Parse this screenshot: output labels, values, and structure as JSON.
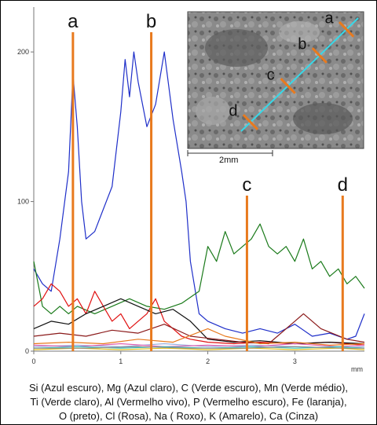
{
  "chart_data": {
    "type": "line",
    "x_unit": "mm",
    "xlim": [
      0,
      3.8
    ],
    "ylim": [
      0,
      230
    ],
    "x_ticks": [
      "0",
      "1",
      "2",
      "3"
    ],
    "y_ticks": [
      "0",
      "100",
      "200"
    ],
    "markers": [
      {
        "label": "a",
        "x": 0.45
      },
      {
        "label": "b",
        "x": 1.35
      },
      {
        "label": "c",
        "x": 2.45
      },
      {
        "label": "d",
        "x": 3.55
      }
    ],
    "marker_color": "#e87a1e",
    "series": [
      {
        "color": "#1f2fc9",
        "points": [
          [
            0.0,
            55
          ],
          [
            0.1,
            45
          ],
          [
            0.2,
            40
          ],
          [
            0.3,
            75
          ],
          [
            0.4,
            120
          ],
          [
            0.45,
            185
          ],
          [
            0.5,
            150
          ],
          [
            0.55,
            100
          ],
          [
            0.6,
            75
          ],
          [
            0.7,
            80
          ],
          [
            0.8,
            95
          ],
          [
            0.9,
            110
          ],
          [
            1.0,
            160
          ],
          [
            1.05,
            195
          ],
          [
            1.1,
            170
          ],
          [
            1.15,
            200
          ],
          [
            1.2,
            180
          ],
          [
            1.3,
            150
          ],
          [
            1.4,
            165
          ],
          [
            1.5,
            200
          ],
          [
            1.6,
            155
          ],
          [
            1.7,
            120
          ],
          [
            1.75,
            100
          ],
          [
            1.8,
            60
          ],
          [
            1.9,
            25
          ],
          [
            2.0,
            20
          ],
          [
            2.2,
            15
          ],
          [
            2.4,
            12
          ],
          [
            2.6,
            15
          ],
          [
            2.8,
            12
          ],
          [
            3.0,
            18
          ],
          [
            3.2,
            10
          ],
          [
            3.4,
            12
          ],
          [
            3.6,
            8
          ],
          [
            3.7,
            10
          ],
          [
            3.8,
            25
          ]
        ]
      },
      {
        "color": "#1a7a1a",
        "points": [
          [
            0.0,
            60
          ],
          [
            0.1,
            30
          ],
          [
            0.2,
            25
          ],
          [
            0.3,
            30
          ],
          [
            0.4,
            25
          ],
          [
            0.5,
            30
          ],
          [
            0.7,
            25
          ],
          [
            0.9,
            30
          ],
          [
            1.1,
            35
          ],
          [
            1.3,
            30
          ],
          [
            1.5,
            28
          ],
          [
            1.7,
            32
          ],
          [
            1.9,
            40
          ],
          [
            2.0,
            70
          ],
          [
            2.1,
            60
          ],
          [
            2.2,
            80
          ],
          [
            2.3,
            65
          ],
          [
            2.4,
            70
          ],
          [
            2.5,
            75
          ],
          [
            2.6,
            85
          ],
          [
            2.7,
            70
          ],
          [
            2.8,
            65
          ],
          [
            2.9,
            70
          ],
          [
            3.0,
            60
          ],
          [
            3.1,
            75
          ],
          [
            3.2,
            55
          ],
          [
            3.3,
            60
          ],
          [
            3.4,
            50
          ],
          [
            3.5,
            55
          ],
          [
            3.6,
            45
          ],
          [
            3.7,
            50
          ],
          [
            3.8,
            42
          ]
        ]
      },
      {
        "color": "#e01010",
        "points": [
          [
            0.0,
            30
          ],
          [
            0.1,
            35
          ],
          [
            0.2,
            45
          ],
          [
            0.3,
            40
          ],
          [
            0.4,
            30
          ],
          [
            0.5,
            35
          ],
          [
            0.6,
            25
          ],
          [
            0.7,
            40
          ],
          [
            0.8,
            30
          ],
          [
            0.9,
            20
          ],
          [
            1.0,
            25
          ],
          [
            1.1,
            15
          ],
          [
            1.2,
            20
          ],
          [
            1.3,
            25
          ],
          [
            1.4,
            35
          ],
          [
            1.5,
            20
          ],
          [
            1.6,
            15
          ],
          [
            1.7,
            10
          ],
          [
            1.8,
            8
          ],
          [
            2.0,
            6
          ],
          [
            2.3,
            5
          ],
          [
            2.6,
            6
          ],
          [
            3.0,
            5
          ],
          [
            3.4,
            6
          ],
          [
            3.8,
            4
          ]
        ]
      },
      {
        "color": "#111111",
        "points": [
          [
            0.0,
            15
          ],
          [
            0.2,
            20
          ],
          [
            0.4,
            18
          ],
          [
            0.6,
            25
          ],
          [
            0.8,
            30
          ],
          [
            1.0,
            35
          ],
          [
            1.2,
            30
          ],
          [
            1.4,
            25
          ],
          [
            1.6,
            28
          ],
          [
            1.8,
            20
          ],
          [
            2.0,
            8
          ],
          [
            2.3,
            6
          ],
          [
            2.6,
            7
          ],
          [
            3.0,
            5
          ],
          [
            3.4,
            6
          ],
          [
            3.8,
            5
          ]
        ]
      },
      {
        "color": "#8b1a1a",
        "points": [
          [
            0.0,
            10
          ],
          [
            0.3,
            12
          ],
          [
            0.6,
            10
          ],
          [
            0.9,
            14
          ],
          [
            1.2,
            12
          ],
          [
            1.5,
            18
          ],
          [
            1.8,
            10
          ],
          [
            2.1,
            8
          ],
          [
            2.4,
            6
          ],
          [
            2.7,
            5
          ],
          [
            3.0,
            20
          ],
          [
            3.1,
            25
          ],
          [
            3.3,
            15
          ],
          [
            3.6,
            8
          ],
          [
            3.8,
            6
          ]
        ]
      },
      {
        "color": "#e87a1e",
        "points": [
          [
            0.0,
            5
          ],
          [
            0.4,
            6
          ],
          [
            0.8,
            5
          ],
          [
            1.2,
            8
          ],
          [
            1.6,
            6
          ],
          [
            2.0,
            15
          ],
          [
            2.2,
            10
          ],
          [
            2.6,
            5
          ],
          [
            3.0,
            6
          ],
          [
            3.4,
            4
          ],
          [
            3.8,
            5
          ]
        ]
      },
      {
        "color": "#9ab0e0",
        "points": [
          [
            0.0,
            3
          ],
          [
            0.5,
            4
          ],
          [
            1.0,
            3
          ],
          [
            1.5,
            5
          ],
          [
            2.0,
            3
          ],
          [
            2.5,
            4
          ],
          [
            3.0,
            3
          ],
          [
            3.5,
            2
          ],
          [
            3.8,
            3
          ]
        ]
      },
      {
        "color": "#e060b0",
        "points": [
          [
            0.0,
            4
          ],
          [
            0.5,
            3
          ],
          [
            1.0,
            5
          ],
          [
            1.5,
            3
          ],
          [
            2.0,
            4
          ],
          [
            2.5,
            3
          ],
          [
            3.0,
            5
          ],
          [
            3.5,
            3
          ],
          [
            3.8,
            4
          ]
        ]
      },
      {
        "color": "#30c8c8",
        "points": [
          [
            0.0,
            2
          ],
          [
            0.5,
            3
          ],
          [
            1.0,
            2
          ],
          [
            1.5,
            3
          ],
          [
            2.0,
            2
          ],
          [
            2.5,
            3
          ],
          [
            3.0,
            2
          ],
          [
            3.5,
            3
          ],
          [
            3.8,
            2
          ]
        ]
      },
      {
        "color": "#e0c020",
        "points": [
          [
            0.0,
            1
          ],
          [
            0.5,
            2
          ],
          [
            1.0,
            1
          ],
          [
            1.5,
            2
          ],
          [
            2.0,
            1
          ],
          [
            2.5,
            2
          ],
          [
            3.0,
            1
          ],
          [
            3.5,
            2
          ],
          [
            3.8,
            1
          ]
        ]
      },
      {
        "color": "#888888",
        "points": [
          [
            0.0,
            2
          ],
          [
            0.6,
            2
          ],
          [
            1.2,
            3
          ],
          [
            1.8,
            2
          ],
          [
            2.4,
            2
          ],
          [
            3.0,
            3
          ],
          [
            3.6,
            2
          ],
          [
            3.8,
            2
          ]
        ]
      }
    ]
  },
  "inset": {
    "scale_label": "2mm",
    "line_color": "#38d8e8",
    "tick_color": "#e87a1e",
    "points": [
      {
        "label": "a",
        "t": 0.1
      },
      {
        "label": "b",
        "t": 0.33
      },
      {
        "label": "c",
        "t": 0.6
      },
      {
        "label": "d",
        "t": 0.92
      }
    ]
  },
  "caption": {
    "line1": "Si (Azul escuro), Mg (Azul claro), C (Verde escuro), Mn (Verde médio),",
    "line2": "Ti (Verde claro), Al (Vermelho vivo), P (Vermelho escuro), Fe (laranja),",
    "line3": "O (preto), Cl (Rosa), Na ( Roxo), K (Amarelo), Ca (Cinza)"
  }
}
